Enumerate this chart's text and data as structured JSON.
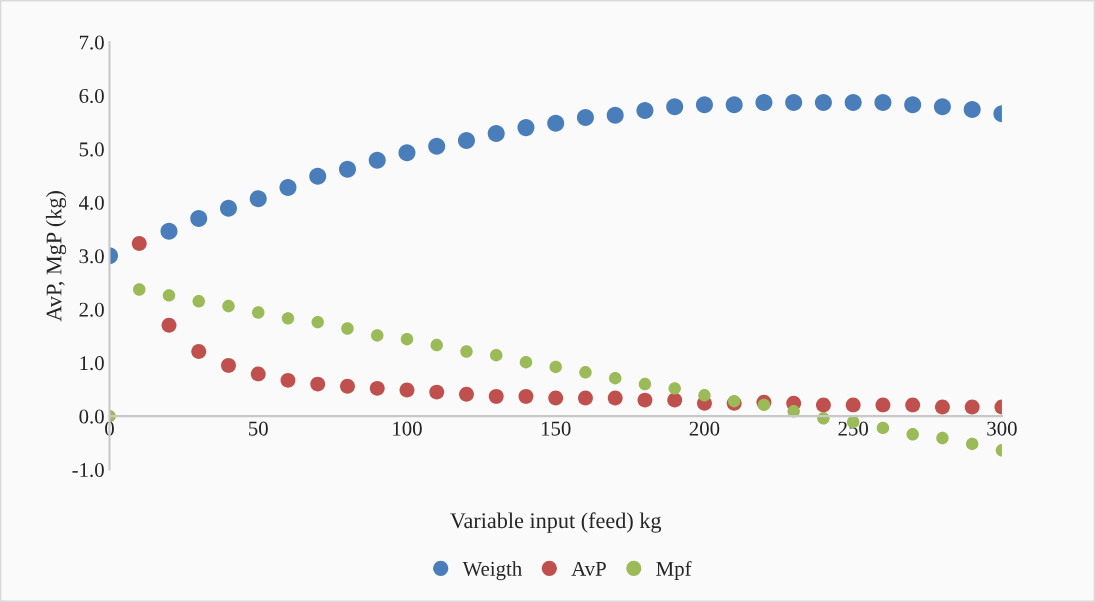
{
  "chart_data": {
    "type": "scatter",
    "xlabel": "Variable input (feed) kg",
    "ylabel": "AvP, MgP (kg)",
    "x": [
      0,
      10,
      20,
      30,
      40,
      50,
      60,
      70,
      80,
      90,
      100,
      110,
      120,
      130,
      140,
      150,
      160,
      170,
      180,
      190,
      200,
      210,
      220,
      230,
      240,
      250,
      260,
      270,
      280,
      290,
      300
    ],
    "series": [
      {
        "name": "Weigth",
        "color": "#4a7ebb",
        "values": [
          3.0,
          null,
          3.46,
          3.7,
          3.89,
          4.07,
          4.28,
          4.49,
          4.62,
          4.79,
          4.93,
          5.05,
          5.16,
          5.29,
          5.4,
          5.48,
          5.59,
          5.63,
          5.72,
          5.79,
          5.83,
          5.83,
          5.87,
          5.87,
          5.87,
          5.87,
          5.87,
          5.83,
          5.79,
          5.74,
          5.66
        ]
      },
      {
        "name": "AvP",
        "color": "#c0504d",
        "values": [
          null,
          3.23,
          1.7,
          1.21,
          0.95,
          0.79,
          0.67,
          0.6,
          0.56,
          0.52,
          0.49,
          0.45,
          0.41,
          0.37,
          0.37,
          0.34,
          0.34,
          0.34,
          0.3,
          0.3,
          0.24,
          0.24,
          0.26,
          0.24,
          0.21,
          0.21,
          0.21,
          0.21,
          0.17,
          0.17,
          0.17
        ]
      },
      {
        "name": "Mpf",
        "color": "#9bbb59",
        "values": [
          0.0,
          2.37,
          2.26,
          2.15,
          2.06,
          1.94,
          1.83,
          1.76,
          1.64,
          1.51,
          1.44,
          1.33,
          1.21,
          1.14,
          1.01,
          0.92,
          0.82,
          0.71,
          0.6,
          0.52,
          0.39,
          0.28,
          0.21,
          0.09,
          -0.04,
          -0.11,
          -0.22,
          -0.34,
          -0.41,
          -0.52,
          -0.64
        ]
      }
    ],
    "xlim": [
      0,
      300
    ],
    "xticks": [
      0,
      50,
      100,
      150,
      200,
      250,
      300
    ],
    "ylim": [
      -1.0,
      7.0
    ],
    "yticks": [
      {
        "value": -1,
        "label": "-1.0"
      },
      {
        "value": 0,
        "label": "0.0"
      },
      {
        "value": 1,
        "label": "1.0"
      },
      {
        "value": 2,
        "label": "2.0"
      },
      {
        "value": 3,
        "label": "3.0"
      },
      {
        "value": 4,
        "label": "4.0"
      },
      {
        "value": 5,
        "label": "5.0"
      },
      {
        "value": 6,
        "label": "6.0"
      },
      {
        "value": 7,
        "label": "7.0"
      }
    ],
    "marker": "circle",
    "grid": false,
    "legend": "bottom"
  }
}
